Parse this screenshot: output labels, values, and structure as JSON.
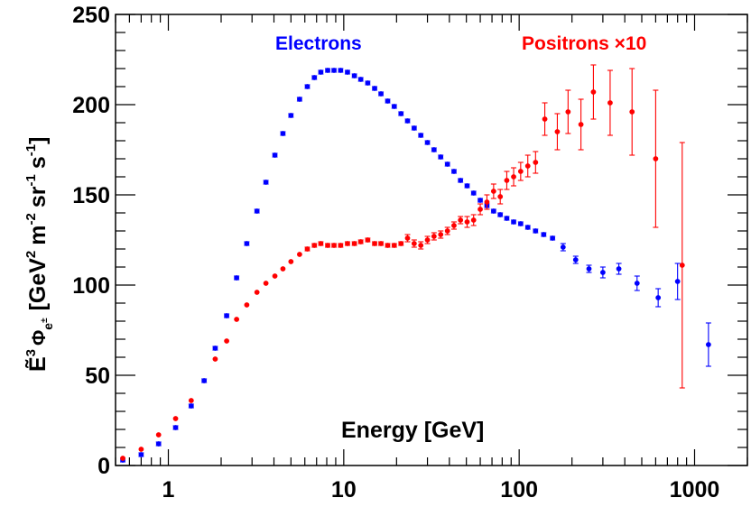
{
  "chart_data": {
    "type": "scatter",
    "title": "",
    "xlabel": "Energy [GeV]",
    "ylabel": "Ẽ³ Φe± [GeV² m⁻² sr⁻¹ s⁻¹]",
    "ylabel_parts": {
      "quantity": "Ẽ",
      "quantity_exp": "3",
      "phi": "Φ",
      "phi_sub": "e",
      "phi_sub_sup": "±",
      "unit_open": "[GeV",
      "unit_exp1": "2",
      "unit_m": "m",
      "unit_exp2": "-2",
      "unit_sr": "sr",
      "unit_exp3": "-1",
      "unit_s": "s",
      "unit_exp4": "-1",
      "unit_close": "]"
    },
    "x_scale": "log",
    "xlim": [
      0.5,
      2000
    ],
    "ylim": [
      0,
      250
    ],
    "x_tick_values": [
      1,
      10,
      100,
      1000
    ],
    "x_tick_labels": [
      "1",
      "10",
      "100",
      "1000"
    ],
    "y_tick_values": [
      0,
      50,
      100,
      150,
      200,
      250
    ],
    "y_tick_labels": [
      "0",
      "50",
      "100",
      "150",
      "200",
      "250"
    ],
    "grid": false,
    "series": [
      {
        "name": "Electrons",
        "color": "#0000ff",
        "points": [
          [
            0.55,
            3,
            1
          ],
          [
            0.7,
            6,
            1
          ],
          [
            0.88,
            12,
            1
          ],
          [
            1.1,
            21,
            1
          ],
          [
            1.35,
            33,
            1
          ],
          [
            1.6,
            47,
            1
          ],
          [
            1.85,
            65,
            1
          ],
          [
            2.15,
            83,
            1
          ],
          [
            2.45,
            104,
            1
          ],
          [
            2.8,
            123,
            1
          ],
          [
            3.2,
            141,
            1
          ],
          [
            3.6,
            157,
            1
          ],
          [
            4.05,
            172,
            1
          ],
          [
            4.5,
            184,
            1
          ],
          [
            5.0,
            194,
            1
          ],
          [
            5.6,
            203,
            1
          ],
          [
            6.2,
            210,
            1
          ],
          [
            6.8,
            215,
            1
          ],
          [
            7.4,
            218,
            1
          ],
          [
            8.1,
            219,
            1
          ],
          [
            8.8,
            219,
            1
          ],
          [
            9.6,
            219,
            1
          ],
          [
            10.5,
            218,
            1
          ],
          [
            11.5,
            216,
            1
          ],
          [
            12.5,
            214,
            1
          ],
          [
            13.7,
            212,
            1
          ],
          [
            15.0,
            209,
            1
          ],
          [
            16.3,
            206,
            1
          ],
          [
            17.8,
            202,
            1
          ],
          [
            19.4,
            199,
            1
          ],
          [
            21.2,
            195,
            1
          ],
          [
            23.1,
            191,
            1
          ],
          [
            25.2,
            187,
            1
          ],
          [
            27.5,
            183,
            1
          ],
          [
            30.0,
            179,
            1
          ],
          [
            32.7,
            175,
            1
          ],
          [
            35.7,
            171,
            1
          ],
          [
            39.0,
            167,
            1
          ],
          [
            42.5,
            163,
            1
          ],
          [
            46.3,
            158,
            1
          ],
          [
            50.5,
            155,
            1
          ],
          [
            55.0,
            151,
            1
          ],
          [
            60.0,
            147,
            1
          ],
          [
            65.5,
            144,
            1
          ],
          [
            71.5,
            141,
            1
          ],
          [
            78.0,
            139,
            1
          ],
          [
            85.0,
            137,
            1
          ],
          [
            93.0,
            135,
            1
          ],
          [
            102,
            134,
            1
          ],
          [
            112,
            132,
            1
          ],
          [
            124,
            130,
            1
          ],
          [
            138,
            128,
            1
          ],
          [
            155,
            126,
            1
          ],
          [
            178,
            121,
            2
          ],
          [
            210,
            114,
            2
          ],
          [
            250,
            109,
            2
          ],
          [
            300,
            107,
            3
          ],
          [
            370,
            109,
            3
          ],
          [
            470,
            101,
            4
          ],
          [
            620,
            93,
            5
          ],
          [
            800,
            102,
            10
          ],
          [
            1200,
            67,
            12
          ]
        ]
      },
      {
        "name": "Positrons ×10",
        "color": "#ff0000",
        "points": [
          [
            0.55,
            4,
            0
          ],
          [
            0.7,
            9,
            0
          ],
          [
            0.88,
            17,
            0
          ],
          [
            1.1,
            26,
            0
          ],
          [
            1.35,
            36,
            0
          ],
          [
            1.85,
            59,
            0
          ],
          [
            2.15,
            69,
            0
          ],
          [
            2.45,
            81,
            0
          ],
          [
            2.8,
            89,
            0
          ],
          [
            3.2,
            96,
            0
          ],
          [
            3.6,
            101,
            0
          ],
          [
            4.05,
            105,
            0
          ],
          [
            4.5,
            109,
            0
          ],
          [
            5.0,
            113,
            0
          ],
          [
            5.6,
            117,
            0
          ],
          [
            6.2,
            120,
            1
          ],
          [
            6.8,
            122,
            1
          ],
          [
            7.4,
            123,
            1
          ],
          [
            8.1,
            122,
            1
          ],
          [
            8.8,
            122,
            1
          ],
          [
            9.6,
            122,
            1
          ],
          [
            10.5,
            123,
            1
          ],
          [
            11.5,
            123,
            1
          ],
          [
            12.5,
            124,
            1
          ],
          [
            13.7,
            125,
            1
          ],
          [
            15.0,
            123,
            1
          ],
          [
            16.3,
            123,
            1
          ],
          [
            17.8,
            122,
            1
          ],
          [
            19.4,
            122,
            1
          ],
          [
            21.2,
            123,
            1
          ],
          [
            23.1,
            126,
            2
          ],
          [
            25.2,
            123,
            2
          ],
          [
            27.5,
            122,
            2
          ],
          [
            30.0,
            125,
            2
          ],
          [
            32.7,
            127,
            2
          ],
          [
            35.7,
            128,
            2
          ],
          [
            39.0,
            130,
            2
          ],
          [
            42.5,
            133,
            2
          ],
          [
            46.3,
            136,
            2
          ],
          [
            50.5,
            135,
            3
          ],
          [
            55.0,
            136,
            3
          ],
          [
            60.0,
            142,
            3
          ],
          [
            65.5,
            146,
            4
          ],
          [
            71.5,
            152,
            4
          ],
          [
            78.0,
            149,
            4
          ],
          [
            85.0,
            158,
            5
          ],
          [
            93.0,
            160,
            5
          ],
          [
            102,
            163,
            5
          ],
          [
            112,
            166,
            6
          ],
          [
            124,
            168,
            6
          ],
          [
            140,
            192,
            9
          ],
          [
            165,
            185,
            10
          ],
          [
            190,
            196,
            12
          ],
          [
            225,
            189,
            14
          ],
          [
            265,
            207,
            15
          ],
          [
            330,
            201,
            18
          ],
          [
            440,
            196,
            24
          ],
          [
            600,
            170,
            38
          ],
          [
            850,
            111,
            68
          ]
        ]
      }
    ],
    "legend": [
      {
        "label": "Electrons",
        "color": "#0000ff"
      },
      {
        "label": "Positrons ×10",
        "color": "#ff0000"
      }
    ]
  }
}
